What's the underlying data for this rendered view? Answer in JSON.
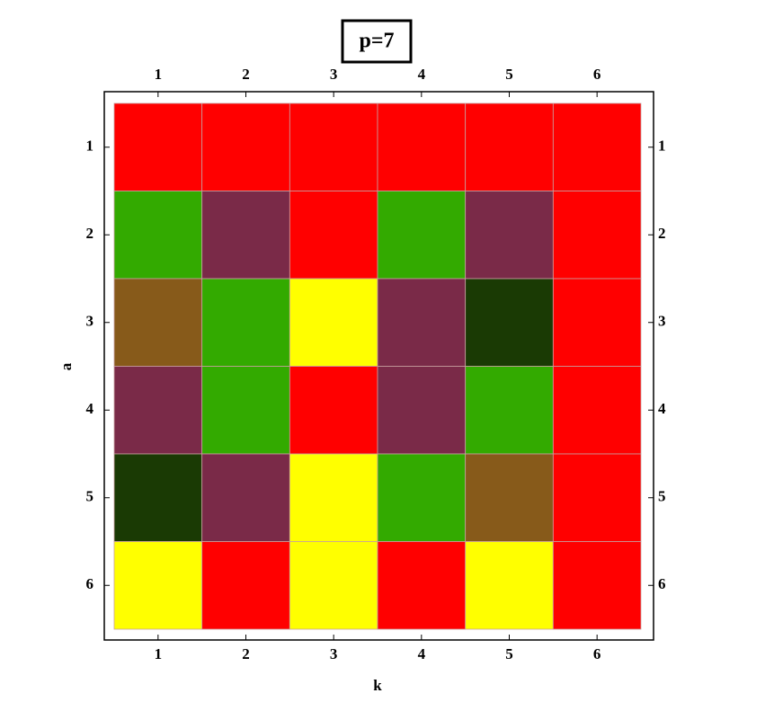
{
  "chart_data": {
    "type": "heatmap",
    "title": "p=7",
    "x_label": "k",
    "y_label": "a",
    "xlim": [
      0.5,
      6.5
    ],
    "ylim": [
      0.5,
      6.5
    ],
    "y_inverted": true,
    "xticks": [
      1,
      2,
      3,
      4,
      5,
      6
    ],
    "yticks": [
      1,
      2,
      3,
      4,
      5,
      6
    ],
    "cells": [
      [
        "#ff0000",
        "#ff0000",
        "#ff0000",
        "#ff0000",
        "#ff0000",
        "#ff0000"
      ],
      [
        "#33aa00",
        "#7a2a48",
        "#ff0000",
        "#33aa00",
        "#7a2a48",
        "#ff0000"
      ],
      [
        "#875a1a",
        "#33aa00",
        "#ffff00",
        "#7a2a48",
        "#1a3a04",
        "#ff0000"
      ],
      [
        "#7a2a48",
        "#33aa00",
        "#ff0000",
        "#7a2a48",
        "#33aa00",
        "#ff0000"
      ],
      [
        "#1a3a04",
        "#7a2a48",
        "#ffff00",
        "#33aa00",
        "#875a1a",
        "#ff0000"
      ],
      [
        "#ffff00",
        "#ff0000",
        "#ffff00",
        "#ff0000",
        "#ffff00",
        "#ff0000"
      ]
    ]
  }
}
